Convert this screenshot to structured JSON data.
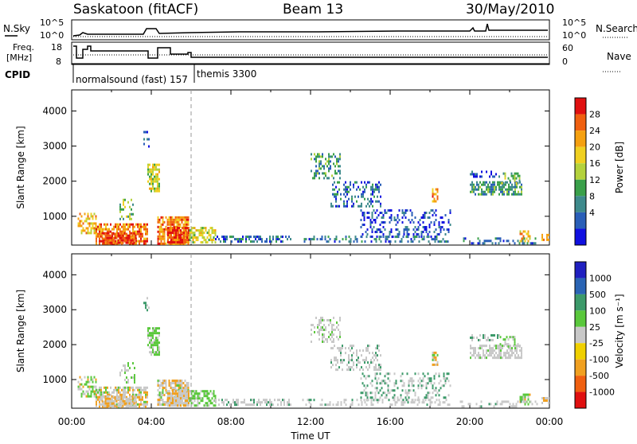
{
  "header": {
    "station": "Saskatoon (fitACF)",
    "beam": "Beam 13",
    "date": "30/May/2010"
  },
  "top_panel": {
    "left_label_1": "N.Sky",
    "left_label_2a": "Freq.",
    "left_label_2b": "[MHz]",
    "left_label_3": "CPID",
    "right_label_1": "N.Search",
    "right_label_2": "Nave",
    "nsky_ticks": [
      "10^5",
      "10^0"
    ],
    "freq_ticks": [
      "18",
      "8"
    ],
    "nave_ticks": [
      "60",
      "0"
    ],
    "cpid_labels": [
      "normalsound (fast) 157",
      "themis 3300"
    ]
  },
  "chart_data": [
    {
      "type": "heatmap",
      "title": "Power",
      "xlabel": "",
      "ylabel": "Slant Range [km]",
      "ylim": [
        180,
        4600
      ],
      "y_ticks": [
        "4000",
        "3000",
        "2000",
        "1000"
      ],
      "colorbar_label": "Power [dB]",
      "colorbar_ticks": [
        "28",
        "24",
        "20",
        "16",
        "12",
        "8",
        "4"
      ],
      "colors": [
        "#1010e0",
        "#2a5fb8",
        "#3e8a8c",
        "#3aa04a",
        "#b4d23c",
        "#f0d020",
        "#f5a010",
        "#f06010",
        "#e01010"
      ]
    },
    {
      "type": "heatmap",
      "title": "Velocity",
      "xlabel": "Time UT",
      "ylabel": "Slant Range [km]",
      "ylim": [
        180,
        4600
      ],
      "y_ticks": [
        "4000",
        "3000",
        "2000",
        "1000"
      ],
      "x_ticks": [
        "00:00",
        "04:00",
        "08:00",
        "12:00",
        "16:00",
        "20:00",
        "00:00"
      ],
      "colorbar_label": "Velocity [m s⁻¹]",
      "colorbar_ticks": [
        "1000",
        "500",
        "100",
        "25",
        "-25",
        "-100",
        "-500",
        "-1000"
      ],
      "colors": [
        "#2020c0",
        "#2a64b4",
        "#3c9a6a",
        "#5ac83c",
        "#c8c8c8",
        "#f0d000",
        "#f0a020",
        "#f06010",
        "#e01010"
      ]
    }
  ]
}
